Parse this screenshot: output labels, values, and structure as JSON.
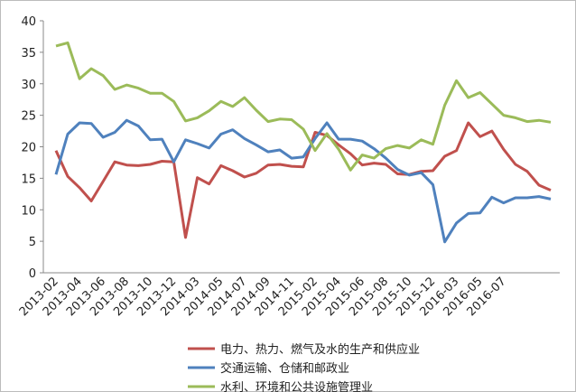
{
  "chart_data": {
    "type": "line",
    "categories": [
      "2013-02",
      null,
      "2013-04",
      null,
      "2013-06",
      null,
      "2013-08",
      null,
      "2013-10",
      null,
      "2013-12",
      null,
      "2014-03",
      null,
      "2014-05",
      null,
      "2014-07",
      null,
      "2014-09",
      null,
      "2014-11",
      null,
      "2015-02",
      null,
      "2015-04",
      null,
      "2015-06",
      null,
      "2015-08",
      null,
      "2015-10",
      null,
      "2015-12",
      null,
      "2016-03",
      null,
      "2016-05",
      null,
      "2016-07",
      null,
      null,
      null,
      null
    ],
    "series": [
      {
        "name": "电力、热力、燃气及水的生产和供应业",
        "color": "#c0504d",
        "values": [
          19.4,
          15.3,
          13.5,
          11.4,
          14.5,
          17.6,
          17.1,
          17.0,
          17.2,
          17.7,
          17.6,
          5.6,
          15.1,
          14.1,
          17.0,
          16.2,
          15.2,
          15.8,
          17.1,
          17.2,
          16.9,
          16.8,
          22.3,
          21.8,
          20.3,
          18.9,
          17.1,
          17.4,
          17.2,
          15.7,
          15.6,
          16.1,
          16.2,
          18.5,
          19.4,
          23.8,
          21.6,
          22.5,
          19.6,
          17.2,
          16.1,
          13.9,
          13.1
        ]
      },
      {
        "name": "交通运输、仓储和邮政业",
        "color": "#4f81bd",
        "values": [
          15.6,
          22.0,
          23.8,
          23.7,
          21.5,
          22.3,
          24.2,
          23.3,
          21.1,
          21.2,
          17.6,
          21.1,
          20.5,
          19.8,
          22.0,
          22.7,
          21.3,
          20.3,
          19.2,
          19.5,
          18.2,
          18.4,
          21.3,
          23.8,
          21.2,
          21.2,
          20.9,
          19.7,
          18.2,
          16.4,
          15.5,
          15.9,
          14.0,
          4.9,
          7.9,
          9.4,
          9.5,
          12.0,
          11.1,
          11.9,
          11.9,
          12.1,
          11.7
        ]
      },
      {
        "name": "水利、环境和公共设施管理业",
        "color": "#9bbb59",
        "values": [
          36.0,
          36.5,
          30.8,
          32.4,
          31.3,
          29.1,
          29.8,
          29.3,
          28.5,
          28.5,
          27.2,
          24.1,
          24.6,
          25.7,
          27.2,
          26.4,
          27.8,
          25.8,
          24.0,
          24.4,
          24.3,
          22.8,
          19.4,
          22.1,
          19.6,
          16.3,
          18.7,
          18.2,
          19.7,
          20.2,
          19.8,
          21.1,
          20.4,
          26.6,
          30.5,
          27.8,
          28.6,
          26.8,
          25.0,
          24.6,
          24.0,
          24.2,
          23.9
        ]
      }
    ],
    "ylim": [
      0,
      40
    ],
    "yticks": [
      0,
      5,
      10,
      15,
      20,
      25,
      30,
      35,
      40
    ],
    "legend": "bottom"
  }
}
